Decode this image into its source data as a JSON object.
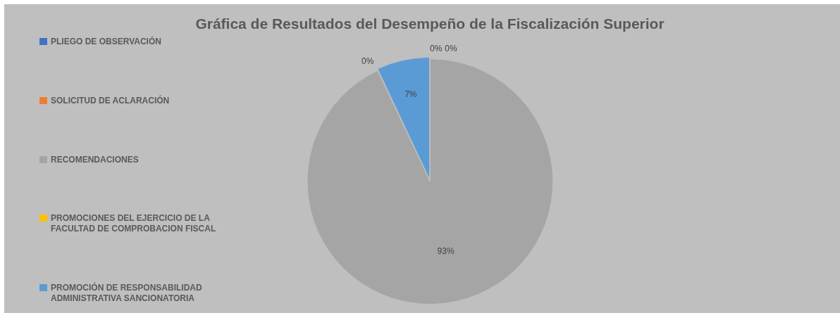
{
  "chart_data": {
    "type": "pie",
    "title": "Gráfica de Resultados del Desempeño de la Fiscalización Superior",
    "categories": [
      "PLIEGO DE OBSERVACIÓN",
      "SOLICITUD DE ACLARACIÓN",
      "RECOMENDACIONES",
      "PROMOCIONES DEL EJERCICIO DE LA FACULTAD DE COMPROBACION FISCAL",
      "PROMOCIÓN DE RESPONSABILIDAD ADMINISTRATIVA SANCIONATORIA"
    ],
    "values": [
      0,
      0,
      93,
      0,
      7
    ],
    "colors": [
      "#4472c4",
      "#ed7d31",
      "#a5a5a5",
      "#ffc000",
      "#5b9bd5"
    ],
    "value_labels": [
      "0%",
      "0%",
      "93%",
      "0%",
      "7%"
    ],
    "legend": "left"
  }
}
